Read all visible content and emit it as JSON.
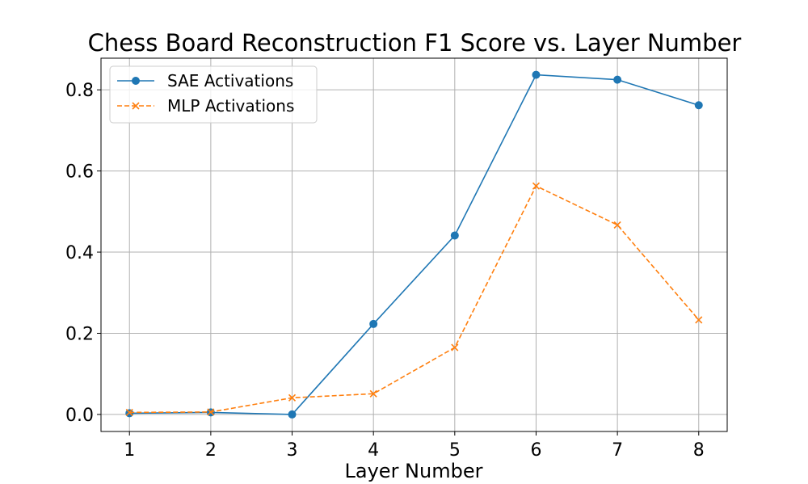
{
  "chart_data": {
    "type": "line",
    "title": "Chess Board Reconstruction F1 Score vs. Layer Number",
    "xlabel": "Layer Number",
    "ylabel": "",
    "x": [
      1,
      2,
      3,
      4,
      5,
      6,
      7,
      8
    ],
    "xticks": [
      "1",
      "2",
      "3",
      "4",
      "5",
      "6",
      "7",
      "8"
    ],
    "yticks": [
      "0.0",
      "0.2",
      "0.4",
      "0.6",
      "0.8"
    ],
    "xlim": [
      0.65,
      8.35
    ],
    "ylim": [
      -0.042,
      0.878
    ],
    "grid": true,
    "legend_position": "top-left",
    "series": [
      {
        "name": "SAE Activations",
        "values": [
          0.003,
          0.005,
          0.0,
          0.223,
          0.441,
          0.837,
          0.825,
          0.762
        ],
        "color": "#1f77b4",
        "marker": "circle",
        "linestyle": "solid"
      },
      {
        "name": "MLP Activations",
        "values": [
          0.005,
          0.006,
          0.041,
          0.051,
          0.165,
          0.563,
          0.467,
          0.233
        ],
        "color": "#ff7f0e",
        "marker": "x",
        "linestyle": "dashed"
      }
    ]
  }
}
